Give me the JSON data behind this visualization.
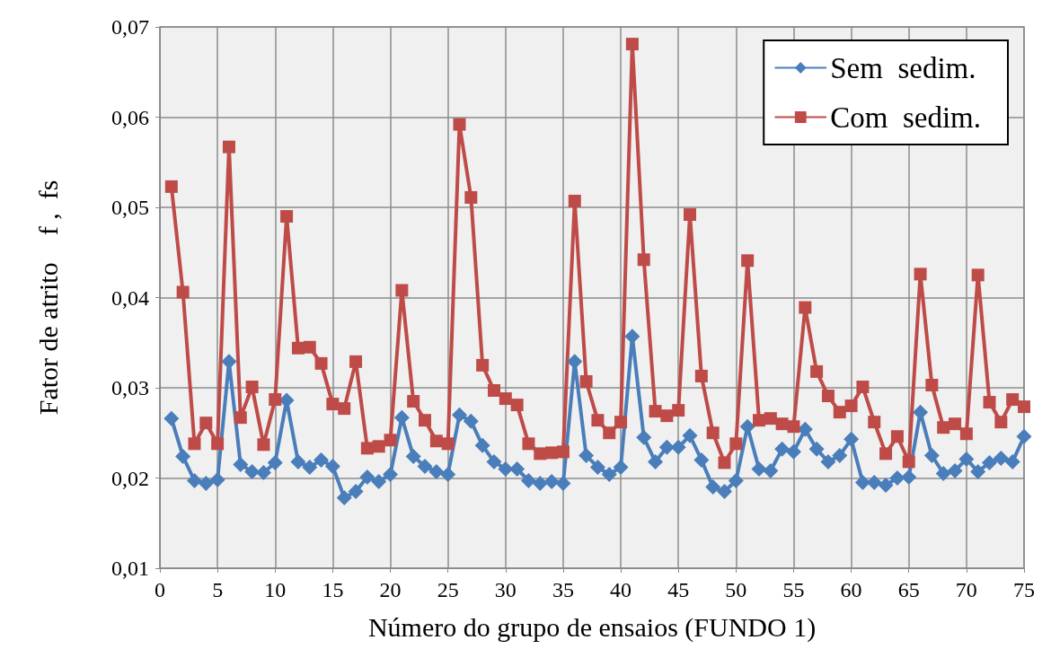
{
  "chart_data": {
    "type": "line",
    "xlabel": "Número do grupo de ensaios (FUNDO 1)",
    "ylabel": "Fator de atrito    f ,  fs",
    "x": [
      1,
      2,
      3,
      4,
      5,
      6,
      7,
      8,
      9,
      10,
      11,
      12,
      13,
      14,
      15,
      16,
      17,
      18,
      19,
      20,
      21,
      22,
      23,
      24,
      25,
      26,
      27,
      28,
      29,
      30,
      31,
      32,
      33,
      34,
      35,
      36,
      37,
      38,
      39,
      40,
      41,
      42,
      43,
      44,
      45,
      46,
      47,
      48,
      49,
      50,
      51,
      52,
      53,
      54,
      55,
      56,
      57,
      58,
      59,
      60,
      61,
      62,
      63,
      64,
      65,
      66,
      67,
      68,
      69,
      70,
      71,
      72,
      73,
      74,
      75
    ],
    "series": [
      {
        "name": "Sem  sedim.",
        "color": "#4a7ebb",
        "marker": "diamond",
        "values": [
          0.0266,
          0.0224,
          0.0197,
          0.0194,
          0.0198,
          0.0329,
          0.0215,
          0.0207,
          0.0206,
          0.0217,
          0.0286,
          0.0218,
          0.0212,
          0.022,
          0.0213,
          0.0178,
          0.0185,
          0.0201,
          0.0196,
          0.0204,
          0.0267,
          0.0224,
          0.0213,
          0.0207,
          0.0204,
          0.027,
          0.0263,
          0.0236,
          0.0218,
          0.021,
          0.021,
          0.0197,
          0.0194,
          0.0196,
          0.0194,
          0.0329,
          0.0225,
          0.0212,
          0.0204,
          0.0212,
          0.0357,
          0.0245,
          0.0218,
          0.0234,
          0.0234,
          0.0247,
          0.022,
          0.019,
          0.0185,
          0.0197,
          0.0257,
          0.021,
          0.0208,
          0.0232,
          0.0229,
          0.0254,
          0.0232,
          0.0218,
          0.0225,
          0.0243,
          0.0195,
          0.0195,
          0.0192,
          0.02,
          0.0201,
          0.0273,
          0.0225,
          0.0205,
          0.0208,
          0.0221,
          0.0207,
          0.0217,
          0.0222,
          0.0218,
          0.0246
        ]
      },
      {
        "name": "Com  sedim.",
        "color": "#be4b48",
        "marker": "square",
        "values": [
          0.0523,
          0.0406,
          0.0238,
          0.0261,
          0.0238,
          0.0567,
          0.0267,
          0.0301,
          0.0237,
          0.0287,
          0.049,
          0.0344,
          0.0345,
          0.0327,
          0.0282,
          0.0277,
          0.0329,
          0.0233,
          0.0235,
          0.0242,
          0.0408,
          0.0285,
          0.0264,
          0.0241,
          0.0238,
          0.0592,
          0.0511,
          0.0325,
          0.0297,
          0.0288,
          0.0281,
          0.0238,
          0.0227,
          0.0228,
          0.0229,
          0.0507,
          0.0307,
          0.0264,
          0.025,
          0.0262,
          0.0681,
          0.0442,
          0.0274,
          0.0269,
          0.0275,
          0.0492,
          0.0313,
          0.025,
          0.0217,
          0.0238,
          0.0441,
          0.0264,
          0.0266,
          0.026,
          0.0257,
          0.0389,
          0.0318,
          0.0291,
          0.0273,
          0.028,
          0.0301,
          0.0262,
          0.0227,
          0.0246,
          0.0218,
          0.0426,
          0.0303,
          0.0256,
          0.026,
          0.0249,
          0.0425,
          0.0284,
          0.0262,
          0.0287,
          0.0279
        ]
      }
    ],
    "xlim": [
      0,
      75
    ],
    "xticks": [
      0,
      5,
      10,
      15,
      20,
      25,
      30,
      35,
      40,
      45,
      50,
      55,
      60,
      65,
      70,
      75
    ],
    "ylim": [
      0.01,
      0.07
    ],
    "yticks": [
      {
        "value": 0.01,
        "label": "0,01"
      },
      {
        "value": 0.02,
        "label": "0,02"
      },
      {
        "value": 0.03,
        "label": "0,03"
      },
      {
        "value": 0.04,
        "label": "0,04"
      },
      {
        "value": 0.05,
        "label": "0,05"
      },
      {
        "value": 0.06,
        "label": "0,06"
      },
      {
        "value": 0.07,
        "label": "0,07"
      }
    ],
    "grid": true,
    "legend": "top right",
    "line_style": "solid"
  }
}
